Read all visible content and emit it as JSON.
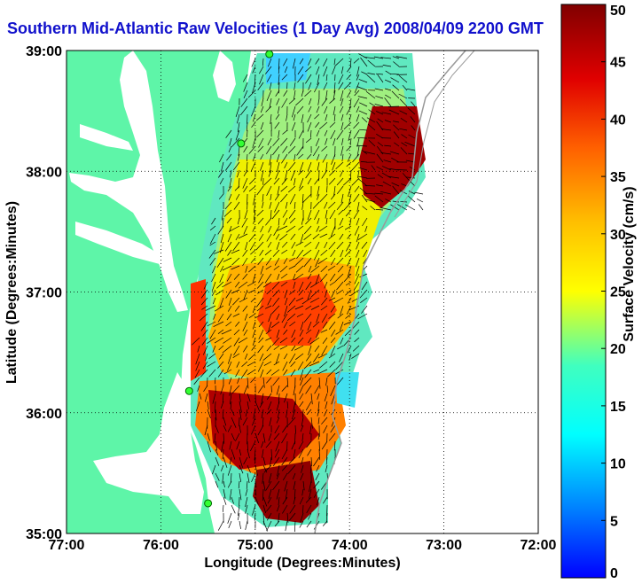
{
  "title": "Southern Mid-Atlantic Raw Velocities (1 Day Avg) 2008/04/09 2200 GMT",
  "map": {
    "xlabel": "Longitude (Degrees:Minutes)",
    "ylabel": "Latitude (Degrees:Minutes)",
    "lon_range": [
      -77,
      -72
    ],
    "lat_range": [
      35,
      39
    ],
    "x_ticks": [
      "77:00",
      "76:00",
      "75:00",
      "74:00",
      "73:00",
      "72:00"
    ],
    "y_ticks": [
      "35:00",
      "36:00",
      "37:00",
      "38:00",
      "39:00"
    ],
    "grid": true,
    "land_color": "#5ef5a8",
    "ocean_color": "#ffffff",
    "stations": [
      {
        "lon": -74.85,
        "lat": 38.97
      },
      {
        "lon": -75.15,
        "lat": 38.23
      },
      {
        "lon": -75.7,
        "lat": 36.18
      },
      {
        "lon": -75.5,
        "lat": 35.25
      }
    ]
  },
  "colorbar": {
    "label": "Surface Velocity (cm/s)",
    "range": [
      0,
      50
    ],
    "ticks": [
      "0",
      "5",
      "10",
      "15",
      "20",
      "25",
      "30",
      "35",
      "40",
      "45",
      "50"
    ]
  }
}
